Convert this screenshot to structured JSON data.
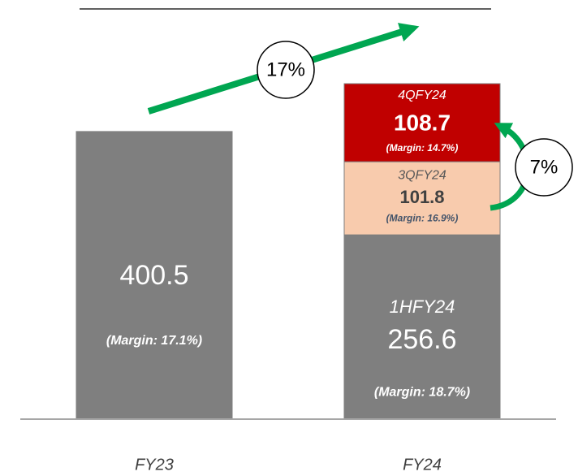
{
  "chart_data": {
    "type": "stacked_bar",
    "categories": [
      "FY23",
      "FY24"
    ],
    "series": [
      {
        "color": "#7f7f7f",
        "values": [
          400.5,
          256.6
        ],
        "segment_labels": [
          null,
          "1HFY24"
        ],
        "margin_labels": [
          "(Margin: 17.1%)",
          "(Margin: 18.7%)"
        ]
      },
      {
        "color": "#f8cbad",
        "values": [
          null,
          101.8
        ],
        "segment_labels": [
          null,
          "3QFY24"
        ],
        "margin_labels": [
          null,
          "(Margin: 16.9%)"
        ]
      },
      {
        "color": "#c00000",
        "values": [
          null,
          108.7
        ],
        "segment_labels": [
          null,
          "4QFY24"
        ],
        "margin_labels": [
          null,
          "(Margin: 14.7%)"
        ]
      }
    ],
    "annotations": [
      "17%",
      "7%"
    ]
  }
}
